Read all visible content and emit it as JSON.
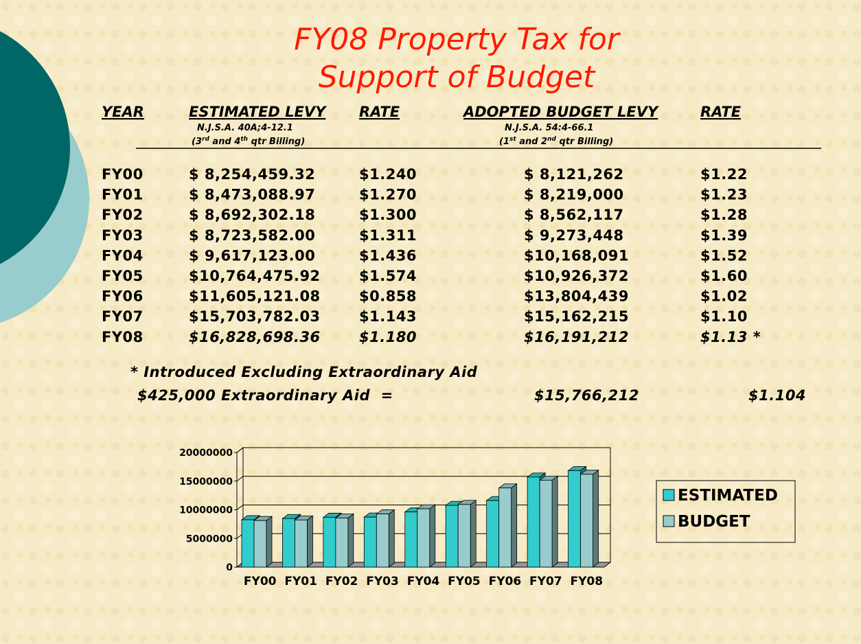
{
  "title": {
    "line1": "FY08 Property Tax for",
    "line2": "Support of Budget"
  },
  "table": {
    "headers": [
      "YEAR",
      "ESTIMATED LEVY",
      "RATE",
      "ADOPTED BUDGET LEVY",
      "RATE"
    ],
    "subheaders": [
      {
        "line1": "N.J.S.A. 40A;4-12.1",
        "line2": [
          "(3",
          "rd",
          " and 4",
          "th",
          " qtr Billing)"
        ]
      },
      {
        "line1": "N.J.S.A. 54:4-66.1",
        "line2": [
          "(1",
          "st",
          " and 2",
          "nd",
          " qtr Billing)"
        ]
      }
    ],
    "rows": [
      [
        "FY00",
        "$ 8,254,459.32",
        "$1.240",
        "$ 8,121,262",
        "$1.22"
      ],
      [
        "FY01",
        "$ 8,473,088.97",
        "$1.270",
        "$ 8,219,000",
        "$1.23"
      ],
      [
        "FY02",
        "$ 8,692,302.18",
        "$1.300",
        "$ 8,562,117",
        "$1.28"
      ],
      [
        "FY03",
        "$ 8,723,582.00",
        "$1.311",
        "$ 9,273,448",
        "$1.39"
      ],
      [
        "FY04",
        "$ 9,617,123.00",
        "$1.436",
        "$10,168,091",
        "$1.52"
      ],
      [
        "FY05",
        "$10,764,475.92",
        "$1.574",
        "$10,926,372",
        "$1.60"
      ],
      [
        "FY06",
        "$11,605,121.08",
        "$0.858",
        "$13,804,439",
        "$1.02"
      ],
      [
        "FY07",
        "$15,703,782.03",
        "$1.143",
        "$15,162,215",
        "$1.10"
      ],
      [
        "FY08",
        "$16,828,698.36",
        "$1.180",
        "$16,191,212",
        "$1.13 *"
      ]
    ]
  },
  "footnote": {
    "line1": "* Introduced Excluding Extraordinary Aid",
    "line2": "$425,000 Extraordinary Aid  =",
    "levy": "$15,766,212",
    "rate": "$1.104"
  },
  "chart_data": {
    "type": "bar3d",
    "categories": [
      "FY00",
      "FY01",
      "FY02",
      "FY03",
      "FY04",
      "FY05",
      "FY06",
      "FY07",
      "FY08"
    ],
    "series": [
      {
        "name": "ESTIMATED",
        "color": "#33cccc",
        "values": [
          8254459.32,
          8473088.97,
          8692302.18,
          8723582.0,
          9617123.0,
          10764475.92,
          11605121.08,
          15703782.03,
          16828698.36
        ]
      },
      {
        "name": "BUDGET",
        "color": "#99cccc",
        "values": [
          8121262,
          8219000,
          8562117,
          9273448,
          10168091,
          10926372,
          13804439,
          15162215,
          16191212
        ]
      }
    ],
    "ylim": [
      0,
      20000000
    ],
    "yticks": [
      0,
      5000000,
      10000000,
      15000000,
      20000000
    ],
    "grid": true,
    "legend": "right"
  }
}
